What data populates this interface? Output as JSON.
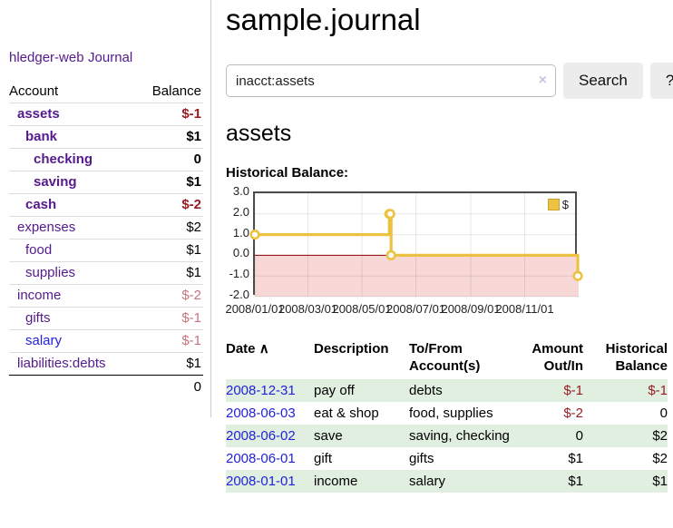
{
  "app": {
    "brand": "hledger-web",
    "nav_journal": "Journal"
  },
  "sidebar": {
    "header": {
      "account": "Account",
      "balance": "Balance"
    },
    "accounts": [
      {
        "name": "assets",
        "indent": 1,
        "bold": true,
        "name_tone": "purple",
        "balance": "$-1",
        "balance_tone": "neg-strong"
      },
      {
        "name": "bank",
        "indent": 2,
        "bold": true,
        "name_tone": "purple",
        "balance": "$1",
        "balance_tone": "pos"
      },
      {
        "name": "checking",
        "indent": 3,
        "bold": true,
        "name_tone": "purple",
        "balance": "0",
        "balance_tone": "pos"
      },
      {
        "name": "saving",
        "indent": 3,
        "bold": true,
        "name_tone": "purple",
        "balance": "$1",
        "balance_tone": "pos"
      },
      {
        "name": "cash",
        "indent": 2,
        "bold": true,
        "name_tone": "purple",
        "balance": "$-2",
        "balance_tone": "neg-strong"
      },
      {
        "name": "expenses",
        "indent": 1,
        "bold": false,
        "name_tone": "purple",
        "balance": "$2",
        "balance_tone": "pos"
      },
      {
        "name": "food",
        "indent": 2,
        "bold": false,
        "name_tone": "purple",
        "balance": "$1",
        "balance_tone": "pos"
      },
      {
        "name": "supplies",
        "indent": 2,
        "bold": false,
        "name_tone": "purple",
        "balance": "$1",
        "balance_tone": "pos"
      },
      {
        "name": "income",
        "indent": 1,
        "bold": false,
        "name_tone": "purple",
        "balance": "$-2",
        "balance_tone": "neg-soft"
      },
      {
        "name": "gifts",
        "indent": 2,
        "bold": false,
        "name_tone": "purple",
        "balance": "$-1",
        "balance_tone": "neg-soft"
      },
      {
        "name": "salary",
        "indent": 2,
        "bold": false,
        "name_tone": "blue",
        "balance": "$-1",
        "balance_tone": "neg-soft"
      },
      {
        "name": "liabilities:debts",
        "indent": 1,
        "bold": false,
        "name_tone": "purple",
        "balance": "$1",
        "balance_tone": "pos"
      }
    ],
    "total": "0"
  },
  "header": {
    "title": "sample.journal"
  },
  "search": {
    "query": "inacct:assets",
    "clear_icon": "×",
    "button": "Search",
    "help_button": "?"
  },
  "main": {
    "heading": "assets",
    "chart_label": "Historical Balance:"
  },
  "chart_data": {
    "type": "line",
    "title": "Historical Balance",
    "step": true,
    "grid": true,
    "x_range": [
      "2008-01-01",
      "2009-01-01"
    ],
    "ylim": [
      -2,
      3
    ],
    "series": [
      {
        "name": "$",
        "color": "#edc240",
        "points": [
          [
            "2008-01-01",
            1
          ],
          [
            "2008-06-01",
            2
          ],
          [
            "2008-06-02",
            2
          ],
          [
            "2008-06-03",
            0
          ],
          [
            "2008-12-31",
            -1
          ]
        ]
      }
    ],
    "yticks": [
      {
        "v": 3,
        "label": "3.0"
      },
      {
        "v": 2,
        "label": "2.0"
      },
      {
        "v": 1,
        "label": "1.0"
      },
      {
        "v": 0,
        "label": "0.0"
      },
      {
        "v": -1,
        "label": "-1.0"
      },
      {
        "v": -2,
        "label": "-2.0"
      }
    ],
    "xticks": [
      {
        "date": "2008-01-01",
        "label": "2008/01/01"
      },
      {
        "date": "2008-03-01",
        "label": "2008/03/01"
      },
      {
        "date": "2008-05-01",
        "label": "2008/05/01"
      },
      {
        "date": "2008-07-01",
        "label": "2008/07/01"
      },
      {
        "date": "2008-09-01",
        "label": "2008/09/01"
      },
      {
        "date": "2008-11-01",
        "label": "2008/11/01"
      }
    ],
    "legend": {
      "label": "$",
      "position": "top-right"
    },
    "negative_region_color": "#f8d7d7",
    "zero_line_color": "#8b0000",
    "gridline_color": "rgba(0,0,0,0.09)"
  },
  "table": {
    "sort_icon": "∧",
    "headers": [
      {
        "lines": [
          "Date"
        ]
      },
      {
        "lines": [
          "Description"
        ]
      },
      {
        "lines": [
          "To/From",
          "Account(s)"
        ]
      },
      {
        "lines": [
          "Amount",
          "Out/In"
        ]
      },
      {
        "lines": [
          "Historical",
          "Balance"
        ]
      }
    ],
    "rows": [
      {
        "date": "2008-12-31",
        "description": "pay off",
        "accounts": "debts",
        "amount": "$-1",
        "amount_neg": true,
        "balance": "$-1",
        "balance_neg": true
      },
      {
        "date": "2008-06-03",
        "description": "eat & shop",
        "accounts": "food, supplies",
        "amount": "$-2",
        "amount_neg": true,
        "balance": "0",
        "balance_neg": false
      },
      {
        "date": "2008-06-02",
        "description": "save",
        "accounts": "saving, checking",
        "amount": "0",
        "amount_neg": false,
        "balance": "$2",
        "balance_neg": false
      },
      {
        "date": "2008-06-01",
        "description": "gift",
        "accounts": "gifts",
        "amount": "$1",
        "amount_neg": false,
        "balance": "$2",
        "balance_neg": false
      },
      {
        "date": "2008-01-01",
        "description": "income",
        "accounts": "salary",
        "amount": "$1",
        "amount_neg": false,
        "balance": "$1",
        "balance_neg": false
      }
    ]
  }
}
